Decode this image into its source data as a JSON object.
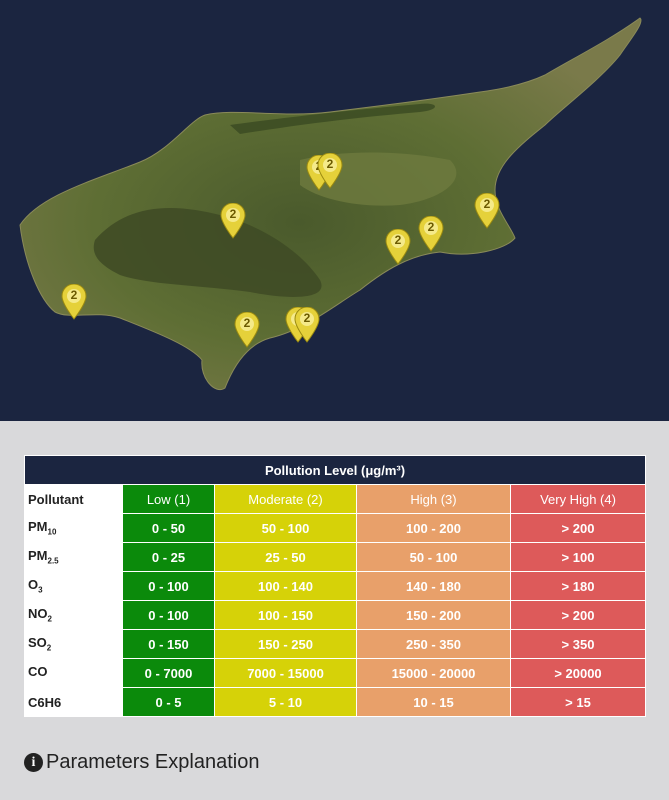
{
  "map": {
    "markers": [
      {
        "label": "2"
      },
      {
        "label": "2"
      },
      {
        "label": "2"
      },
      {
        "label": "2"
      },
      {
        "label": "2"
      },
      {
        "label": "2"
      },
      {
        "label": "2"
      },
      {
        "label": "2"
      },
      {
        "label": "2"
      },
      {
        "label": "2"
      }
    ]
  },
  "table": {
    "title": "Pollution Level (μg/m³)",
    "headers": {
      "pollutant": "Pollutant",
      "low": "Low (1)",
      "moderate": "Moderate (2)",
      "high": "High (3)",
      "very_high": "Very High (4)"
    },
    "rows": [
      {
        "name": "PM",
        "sub": "10",
        "low": "0 - 50",
        "moderate": "50 - 100",
        "high": "100 - 200",
        "very_high": "> 200"
      },
      {
        "name": "PM",
        "sub": "2.5",
        "low": "0 - 25",
        "moderate": "25 - 50",
        "high": "50 - 100",
        "very_high": "> 100"
      },
      {
        "name": "O",
        "sub": "3",
        "low": "0 - 100",
        "moderate": "100 - 140",
        "high": "140 - 180",
        "very_high": "> 180"
      },
      {
        "name": "NO",
        "sub": "2",
        "low": "0 - 100",
        "moderate": "100 - 150",
        "high": "150 - 200",
        "very_high": "> 200"
      },
      {
        "name": "SO",
        "sub": "2",
        "low": "0 - 150",
        "moderate": "150 - 250",
        "high": "250 - 350",
        "very_high": "> 350"
      },
      {
        "name": "CO",
        "sub": "",
        "low": "0 - 7000",
        "moderate": "7000 - 15000",
        "high": "15000 - 20000",
        "very_high": "> 20000"
      },
      {
        "name": "C6H6",
        "sub": "",
        "low": "0 - 5",
        "moderate": "5 - 10",
        "high": "10 - 15",
        "very_high": "> 15"
      }
    ]
  },
  "explain": {
    "icon": "info-icon",
    "label": "Parameters Explanation"
  },
  "colors": {
    "map_bg": "#1b2540",
    "low": "#0b8a0b",
    "moderate": "#d6d208",
    "high": "#e8a06a",
    "very_high": "#dd5a5a",
    "marker": "#e5d13a"
  }
}
